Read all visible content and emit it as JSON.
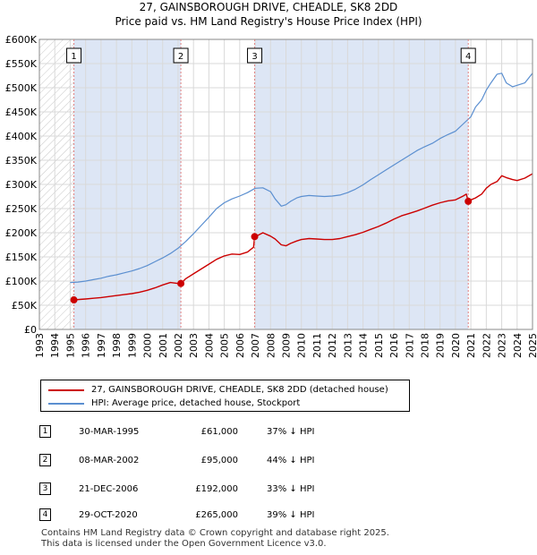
{
  "title": {
    "line1": "27, GAINSBOROUGH DRIVE, CHEADLE, SK8 2DD",
    "line2": "Price paid vs. HM Land Registry's House Price Index (HPI)"
  },
  "chart_data": {
    "type": "line",
    "title": "27, GAINSBOROUGH DRIVE, CHEADLE, SK8 2DD — Price paid vs. HM Land Registry's House Price Index (HPI)",
    "xlabel": "",
    "ylabel": "",
    "xlim": [
      1993,
      2025
    ],
    "ylim": [
      0,
      600000
    ],
    "x_ticks": [
      1993,
      1994,
      1995,
      1996,
      1997,
      1998,
      1999,
      2000,
      2001,
      2002,
      2003,
      2004,
      2005,
      2006,
      2007,
      2008,
      2009,
      2010,
      2011,
      2012,
      2013,
      2014,
      2015,
      2016,
      2017,
      2018,
      2019,
      2020,
      2021,
      2022,
      2023,
      2024,
      2025
    ],
    "x_tick_labels": [
      "1993",
      "1994",
      "1995",
      "1996",
      "1997",
      "1998",
      "1999",
      "2000",
      "2001",
      "2002",
      "2003",
      "2004",
      "2005",
      "2006",
      "2007",
      "2008",
      "2009",
      "2010",
      "2011",
      "2012",
      "2013",
      "2014",
      "2015",
      "2016",
      "2017",
      "2018",
      "2019",
      "2020",
      "2021",
      "2022",
      "2023",
      "2024",
      "2025"
    ],
    "y_ticks": [
      0,
      50000,
      100000,
      150000,
      200000,
      250000,
      300000,
      350000,
      400000,
      450000,
      500000,
      550000,
      600000
    ],
    "y_tick_labels": [
      "£0",
      "£50K",
      "£100K",
      "£150K",
      "£200K",
      "£250K",
      "£300K",
      "£350K",
      "£400K",
      "£450K",
      "£500K",
      "£550K",
      "£600K"
    ],
    "grid": true,
    "hatched_region": [
      1993,
      1995.24
    ],
    "shaded_regions": [
      [
        1995.24,
        2002.18
      ],
      [
        2006.97,
        2020.83
      ]
    ],
    "series": [
      {
        "name": "27, GAINSBOROUGH DRIVE, CHEADLE, SK8 2DD (detached house)",
        "color": "#cc0000",
        "x": [
          1995.24,
          1995.6,
          1996,
          1996.5,
          1997,
          1997.5,
          1998,
          1998.5,
          1999,
          1999.5,
          2000,
          2000.5,
          2001,
          2001.5,
          2002,
          2002.18,
          2002.5,
          2003,
          2003.5,
          2004,
          2004.5,
          2005,
          2005.5,
          2006,
          2006.5,
          2006.9,
          2006.97,
          2007.2,
          2007.5,
          2008,
          2008.3,
          2008.7,
          2009,
          2009.3,
          2009.7,
          2010,
          2010.5,
          2011,
          2011.5,
          2012,
          2012.5,
          2013,
          2013.5,
          2014,
          2014.5,
          2015,
          2015.5,
          2016,
          2016.5,
          2017,
          2017.5,
          2018,
          2018.5,
          2019,
          2019.5,
          2020,
          2020.5,
          2020.7,
          2020.83,
          2021,
          2021.3,
          2021.7,
          2022,
          2022.3,
          2022.7,
          2023,
          2023.3,
          2023.7,
          2024,
          2024.5,
          2025
        ],
        "values": [
          61000,
          62000,
          63000,
          64500,
          66000,
          68000,
          70000,
          72000,
          74000,
          77000,
          81000,
          86000,
          92000,
          97000,
          95000,
          95000,
          105000,
          115000,
          125000,
          135000,
          145000,
          152000,
          156000,
          155000,
          160000,
          170000,
          192000,
          195000,
          200000,
          193000,
          187000,
          175000,
          173000,
          178000,
          183000,
          186000,
          188000,
          187000,
          186000,
          186000,
          188000,
          192000,
          196000,
          201000,
          207000,
          213000,
          220000,
          228000,
          235000,
          240000,
          245000,
          251000,
          257000,
          262000,
          266000,
          268000,
          276000,
          280000,
          265000,
          268000,
          272000,
          280000,
          292000,
          300000,
          306000,
          318000,
          314000,
          310000,
          308000,
          313000,
          322000
        ]
      },
      {
        "name": "HPI: Average price, detached house, Stockport",
        "color": "#5b8fd0",
        "x": [
          1995,
          1995.5,
          1996,
          1996.5,
          1997,
          1997.5,
          1998,
          1998.5,
          1999,
          1999.5,
          2000,
          2000.5,
          2001,
          2001.5,
          2002,
          2002.5,
          2003,
          2003.5,
          2004,
          2004.5,
          2005,
          2005.5,
          2006,
          2006.5,
          2007,
          2007.5,
          2008,
          2008.3,
          2008.7,
          2009,
          2009.3,
          2009.7,
          2010,
          2010.5,
          2011,
          2011.5,
          2012,
          2012.5,
          2013,
          2013.5,
          2014,
          2014.5,
          2015,
          2015.5,
          2016,
          2016.5,
          2017,
          2017.5,
          2018,
          2018.5,
          2019,
          2019.5,
          2020,
          2020.5,
          2021,
          2021.3,
          2021.7,
          2022,
          2022.3,
          2022.7,
          2023,
          2023.3,
          2023.7,
          2024,
          2024.5,
          2025
        ],
        "values": [
          97000,
          98000,
          100000,
          103000,
          106000,
          110000,
          113000,
          117000,
          121000,
          126000,
          132000,
          140000,
          148000,
          157000,
          168000,
          182000,
          198000,
          215000,
          232000,
          250000,
          262000,
          270000,
          276000,
          283000,
          292000,
          293000,
          285000,
          270000,
          255000,
          258000,
          265000,
          272000,
          275000,
          277000,
          276000,
          275000,
          276000,
          278000,
          283000,
          290000,
          299000,
          310000,
          320000,
          330000,
          340000,
          350000,
          360000,
          370000,
          378000,
          385000,
          395000,
          403000,
          410000,
          425000,
          440000,
          460000,
          475000,
          495000,
          510000,
          528000,
          530000,
          510000,
          502000,
          505000,
          510000,
          530000
        ]
      }
    ],
    "annotations": [
      {
        "label": "1",
        "x": 1995.24,
        "y": 61000
      },
      {
        "label": "2",
        "x": 2002.18,
        "y": 95000
      },
      {
        "label": "3",
        "x": 2006.97,
        "y": 192000
      },
      {
        "label": "4",
        "x": 2020.83,
        "y": 265000
      }
    ]
  },
  "legend": {
    "items": [
      {
        "label": "27, GAINSBOROUGH DRIVE, CHEADLE, SK8 2DD (detached house)",
        "color": "#cc0000"
      },
      {
        "label": "HPI: Average price, detached house, Stockport",
        "color": "#5b8fd0"
      }
    ]
  },
  "sales": [
    {
      "num": "1",
      "date": "30-MAR-1995",
      "price": "£61,000",
      "hpi": "37% ↓ HPI"
    },
    {
      "num": "2",
      "date": "08-MAR-2002",
      "price": "£95,000",
      "hpi": "44% ↓ HPI"
    },
    {
      "num": "3",
      "date": "21-DEC-2006",
      "price": "£192,000",
      "hpi": "33% ↓ HPI"
    },
    {
      "num": "4",
      "date": "29-OCT-2020",
      "price": "£265,000",
      "hpi": "39% ↓ HPI"
    }
  ],
  "footer": {
    "line1": "Contains HM Land Registry data © Crown copyright and database right 2025.",
    "line2": "This data is licensed under the Open Government Licence v3.0."
  },
  "colors": {
    "property": "#cc0000",
    "hpi": "#5b8fd0",
    "shade": "#dde6f5",
    "grid": "#d9d9d9",
    "marker_line": "#e08080"
  }
}
